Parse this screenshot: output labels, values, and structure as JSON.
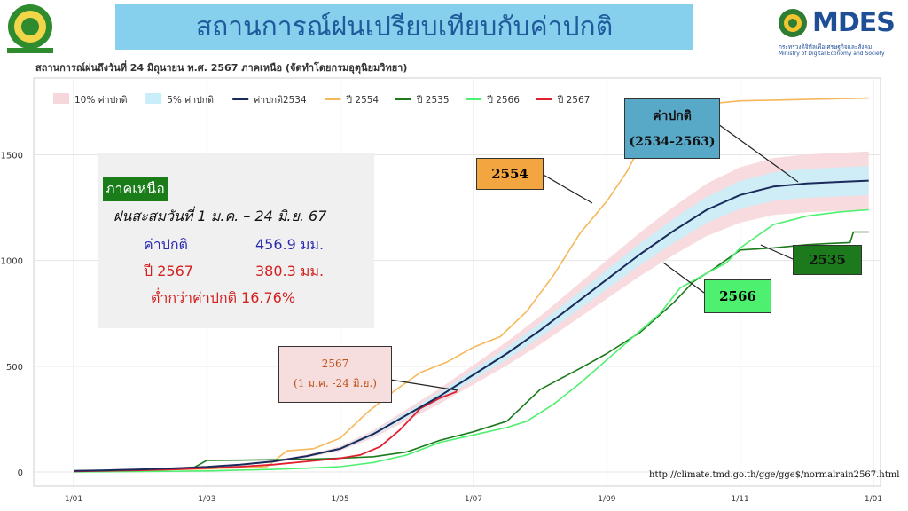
{
  "page_title": "สถานการณ์ฝนเปรียบเทียบกับค่าปกติ",
  "subtitle": "สถานการณ์ฝนถึงวันที่ 24 มิถุนายน พ.ศ. 2567 ภาคเหนือ (จัดทำโดยกรมอุตุนิยมวิทยา)",
  "logo_right": {
    "brand": "MDES",
    "thai_text": "กระทรวงดิจิทัลเพื่อเศรษฐกิจและสังคม",
    "english_text": "Ministry of Digital Economy and Society"
  },
  "info_box": {
    "region": "ภาคเหนือ",
    "period": "ฝนสะสมวันที่ 1 ม.ค. – 24 มิ.ย.  67",
    "normal_label": "ค่าปกติ",
    "normal_value": "456.9 มม.",
    "year_label": "ปี 2567",
    "year_value": "380.3 มม.",
    "diff_text": "ต่ำกว่าค่าปกติ   16.76%"
  },
  "callouts": {
    "y2554": "2554",
    "normal_line1": "ค่าปกติ",
    "normal_line2": "(2534-2563)",
    "y2535": "2535",
    "y2566": "2566",
    "y2567_line1": "2567",
    "y2567_line2": "(1 ม.ค. -24 มิ.ย.)"
  },
  "source_url": "http://climate.tmd.go.th/gge/gge$/normalrain2567.html",
  "colors": {
    "band10": "#f6d7db",
    "band5": "#c9eefa",
    "normal": "#1a2a5a",
    "y2554": "#f5b85a",
    "y2535": "#1b7a1b",
    "y2566": "#4ef070",
    "y2567": "#e02030"
  },
  "chart_data": {
    "type": "line",
    "title": "",
    "xlabel": "",
    "ylabel": "",
    "x_unit": "month index (1/01 = 0)",
    "xlim": [
      0,
      12
    ],
    "ylim": [
      0,
      1800
    ],
    "x_ticks": [
      {
        "x": 0,
        "label": "1/01"
      },
      {
        "x": 2,
        "label": "1/03"
      },
      {
        "x": 4,
        "label": "1/05"
      },
      {
        "x": 6,
        "label": "1/07"
      },
      {
        "x": 8,
        "label": "1/09"
      },
      {
        "x": 10,
        "label": "1/11"
      },
      {
        "x": 12,
        "label": "1/01"
      }
    ],
    "y_ticks": [
      0,
      500,
      1000,
      1500
    ],
    "legend": {
      "placement": "top-left",
      "items": [
        {
          "label": "10% ค่าปกติ",
          "kind": "band",
          "color": "#f6d7db"
        },
        {
          "label": "5% ค่าปกติ",
          "kind": "band",
          "color": "#c9eefa"
        },
        {
          "label": "ค่าปกติ2534",
          "kind": "line",
          "color": "#1a2a5a"
        },
        {
          "label": "ปี 2554",
          "kind": "line",
          "color": "#f5b85a"
        },
        {
          "label": "ปี 2535",
          "kind": "line",
          "color": "#1b7a1b"
        },
        {
          "label": "ปี 2566",
          "kind": "line",
          "color": "#4ef070"
        },
        {
          "label": "ปี 2567",
          "kind": "line",
          "color": "#e02030"
        }
      ]
    },
    "series": [
      {
        "name": "ค่าปกติ2534",
        "color": "#1a2a5a",
        "width": 2,
        "x": [
          0,
          0.5,
          1,
          1.5,
          2,
          2.5,
          3,
          3.5,
          4,
          4.5,
          5,
          5.5,
          6,
          6.5,
          7,
          7.5,
          8,
          8.5,
          9,
          9.5,
          10,
          10.5,
          11,
          11.5,
          11.93
        ],
        "y": [
          5,
          8,
          12,
          17,
          24,
          35,
          50,
          75,
          110,
          180,
          270,
          360,
          460,
          560,
          670,
          790,
          910,
          1030,
          1140,
          1240,
          1310,
          1350,
          1365,
          1372,
          1378
        ]
      },
      {
        "name": "ปี 2554",
        "color": "#f5b85a",
        "width": 1.6,
        "x": [
          0,
          1,
          2,
          2.5,
          2.9,
          3.2,
          3.6,
          4,
          4.4,
          4.8,
          5.2,
          5.6,
          6,
          6.4,
          6.8,
          7.2,
          7.6,
          8,
          8.3,
          8.6,
          8.9,
          9.2,
          9.5,
          10,
          11,
          11.93
        ],
        "y": [
          2,
          8,
          15,
          20,
          25,
          100,
          110,
          160,
          280,
          380,
          470,
          520,
          590,
          640,
          760,
          930,
          1130,
          1280,
          1420,
          1600,
          1700,
          1730,
          1740,
          1755,
          1762,
          1768
        ]
      },
      {
        "name": "ปี 2535",
        "color": "#1b7a1b",
        "width": 1.6,
        "x": [
          0,
          1,
          1.8,
          2,
          2.5,
          3,
          3.5,
          4,
          4.5,
          5,
          5.5,
          6,
          6.5,
          7,
          7.3,
          7.6,
          8,
          8.5,
          9,
          9.3,
          9.6,
          10,
          10.5,
          11,
          11.3,
          11.65,
          11.7,
          11.93
        ],
        "y": [
          5,
          10,
          20,
          55,
          56,
          58,
          60,
          65,
          72,
          95,
          150,
          190,
          240,
          390,
          440,
          490,
          560,
          660,
          800,
          900,
          960,
          1050,
          1060,
          1075,
          1080,
          1085,
          1135,
          1135
        ]
      },
      {
        "name": "ปี 2566",
        "color": "#4ef070",
        "width": 1.6,
        "x": [
          0,
          1,
          2,
          3,
          3.5,
          4,
          4.5,
          5,
          5.5,
          6,
          6.5,
          6.8,
          7.2,
          7.6,
          8,
          8.4,
          8.8,
          9.1,
          9.5,
          9.8,
          10,
          10.5,
          11,
          11.5,
          11.93
        ],
        "y": [
          0,
          2,
          5,
          12,
          18,
          25,
          45,
          80,
          140,
          175,
          210,
          240,
          320,
          420,
          530,
          640,
          750,
          870,
          940,
          990,
          1060,
          1170,
          1210,
          1230,
          1240
        ]
      },
      {
        "name": "ปี 2567",
        "color": "#e02030",
        "width": 1.8,
        "x": [
          0,
          1,
          1.5,
          2,
          2.5,
          3,
          3.5,
          4,
          4.3,
          4.6,
          4.9,
          5.2,
          5.5,
          5.75
        ],
        "y": [
          3,
          8,
          12,
          18,
          25,
          35,
          50,
          65,
          80,
          120,
          200,
          300,
          350,
          380
        ]
      }
    ],
    "bands": [
      {
        "name": "10% ค่าปกติ",
        "color": "#f6d7db",
        "fraction": 0.1
      },
      {
        "name": "5% ค่าปกติ",
        "color": "#c9eefa",
        "fraction": 0.05
      }
    ]
  }
}
